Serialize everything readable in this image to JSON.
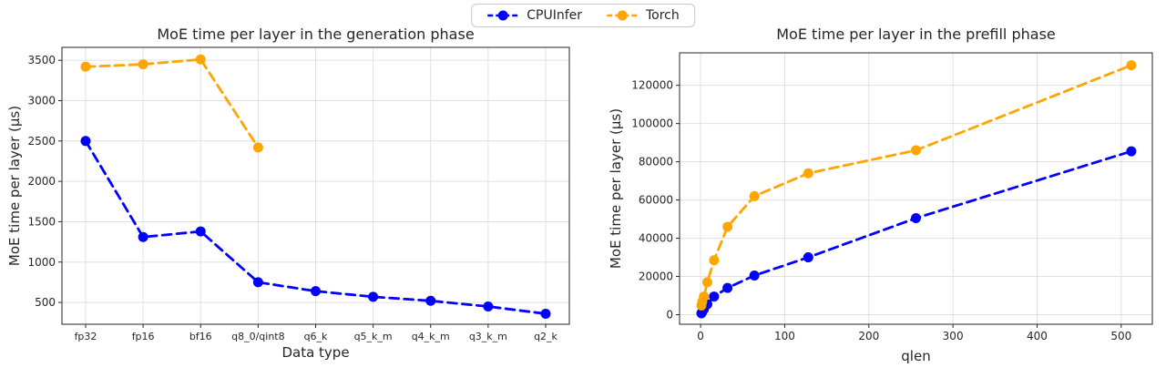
{
  "legend": {
    "items": [
      {
        "label": "CPUInfer",
        "color": "#0000ff"
      },
      {
        "label": "Torch",
        "color": "#ffa500"
      }
    ]
  },
  "chart_data": [
    {
      "type": "line",
      "title": "MoE time per layer in the generation phase",
      "xlabel": "Data type",
      "ylabel": "MoE time per layer (μs)",
      "x_mode": "categorical",
      "categories": [
        "fp32",
        "fp16",
        "bf16",
        "q8_0/qint8",
        "q6_k",
        "q5_k_m",
        "q4_k_m",
        "q3_k_m",
        "q2_k"
      ],
      "yticks": [
        500,
        1000,
        1500,
        2000,
        2500,
        3000,
        3500
      ],
      "ylim": [
        230,
        3660
      ],
      "grid": true,
      "line_style": "dashed",
      "marker": "circle",
      "series": [
        {
          "name": "CPUInfer",
          "color": "#0000ff",
          "values": [
            2500,
            1310,
            1380,
            750,
            640,
            570,
            520,
            450,
            360
          ]
        },
        {
          "name": "Torch",
          "color": "#ffa500",
          "values": [
            3420,
            3450,
            3510,
            2420,
            null,
            null,
            null,
            null,
            null
          ]
        }
      ]
    },
    {
      "type": "line",
      "title": "MoE time per layer in the prefill phase",
      "xlabel": "qlen",
      "ylabel": "MoE time per layer (μs)",
      "x_mode": "numeric",
      "x": [
        1,
        2,
        4,
        8,
        16,
        32,
        64,
        128,
        256,
        512
      ],
      "xticks": [
        0,
        100,
        200,
        300,
        400,
        500
      ],
      "xlim": [
        -25,
        537
      ],
      "yticks": [
        0,
        20000,
        40000,
        60000,
        80000,
        100000,
        120000
      ],
      "ylim": [
        -5000,
        137000
      ],
      "grid": true,
      "line_style": "dashed",
      "marker": "circle",
      "series": [
        {
          "name": "CPUInfer",
          "color": "#0000ff",
          "values": [
            700,
            1500,
            3000,
            5500,
            9500,
            14000,
            20500,
            30000,
            50500,
            85500
          ]
        },
        {
          "name": "Torch",
          "color": "#ffa500",
          "values": [
            4800,
            6800,
            9500,
            17000,
            28500,
            46000,
            62000,
            74000,
            86000,
            130500
          ]
        }
      ]
    }
  ]
}
